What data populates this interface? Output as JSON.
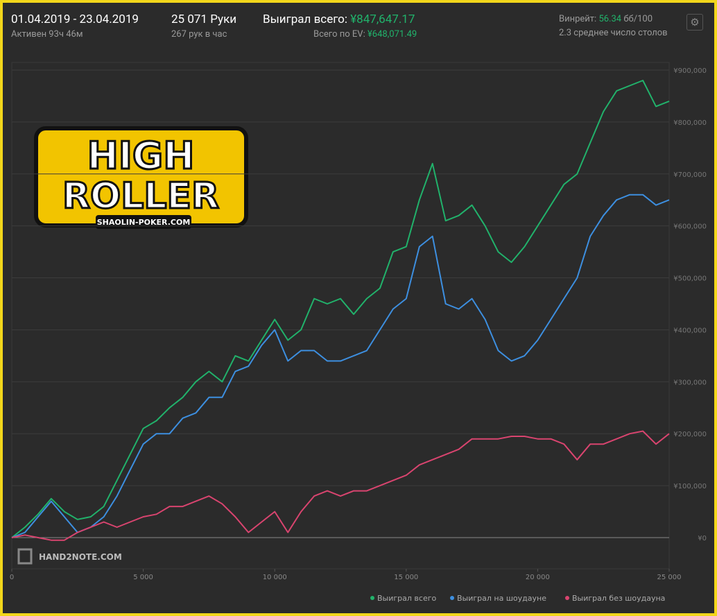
{
  "header": {
    "date_range": "01.04.2019 - 23.04.2019",
    "active": "Активен 93ч 46м",
    "hands": "25 071 Руки",
    "hands_per_hour": "267 рук в час",
    "won_total_label": "Выиграл всего:",
    "won_total_value": "¥847,647.17",
    "ev_label": "Всего по EV:",
    "ev_value": "¥648,071.49",
    "winrate_label": "Винрейт:",
    "winrate_value": "56.34",
    "winrate_unit": "бб/100",
    "avg_tables": "2.3 среднее число столов"
  },
  "logo": {
    "line1": "HIGH",
    "line2": "ROLLER",
    "site": "SHAOLIN-POKER.COM"
  },
  "watermark": "HAND2NOTE.COM",
  "chart_data": {
    "type": "line",
    "x": [
      0,
      500,
      1000,
      1500,
      2000,
      2500,
      3000,
      3500,
      4000,
      4500,
      5000,
      5500,
      6000,
      6500,
      7000,
      7500,
      8000,
      8500,
      9000,
      9500,
      10000,
      10500,
      11000,
      11500,
      12000,
      12500,
      13000,
      13500,
      14000,
      14500,
      15000,
      15500,
      16000,
      16500,
      17000,
      17500,
      18000,
      18500,
      19000,
      19500,
      20000,
      20500,
      21000,
      21500,
      22000,
      22500,
      23000,
      23500,
      24000,
      24500,
      25000
    ],
    "series": [
      {
        "name": "Выиграл всего",
        "color": "#21b26b",
        "values": [
          0,
          20000,
          45000,
          75000,
          50000,
          35000,
          40000,
          60000,
          110000,
          160000,
          210000,
          225000,
          250000,
          270000,
          300000,
          320000,
          300000,
          350000,
          340000,
          380000,
          420000,
          380000,
          400000,
          460000,
          450000,
          460000,
          430000,
          460000,
          480000,
          550000,
          560000,
          650000,
          720000,
          610000,
          620000,
          640000,
          600000,
          550000,
          530000,
          560000,
          600000,
          640000,
          680000,
          700000,
          760000,
          820000,
          860000,
          870000,
          880000,
          830000,
          840000
        ]
      },
      {
        "name": "Выиграл на шоудауне",
        "color": "#3d8fe0",
        "values": [
          0,
          10000,
          40000,
          70000,
          40000,
          10000,
          20000,
          40000,
          80000,
          130000,
          180000,
          200000,
          200000,
          230000,
          240000,
          270000,
          270000,
          320000,
          330000,
          370000,
          400000,
          340000,
          360000,
          360000,
          340000,
          340000,
          350000,
          360000,
          400000,
          440000,
          460000,
          560000,
          580000,
          450000,
          440000,
          460000,
          420000,
          360000,
          340000,
          350000,
          380000,
          420000,
          460000,
          500000,
          580000,
          620000,
          650000,
          660000,
          660000,
          640000,
          650000
        ]
      },
      {
        "name": "Выиграл без шоудауна",
        "color": "#d9446f",
        "values": [
          0,
          5000,
          0,
          -5000,
          -5000,
          10000,
          20000,
          30000,
          20000,
          30000,
          40000,
          45000,
          60000,
          60000,
          70000,
          80000,
          65000,
          40000,
          10000,
          30000,
          50000,
          10000,
          50000,
          80000,
          90000,
          80000,
          90000,
          90000,
          100000,
          110000,
          120000,
          140000,
          150000,
          160000,
          170000,
          190000,
          190000,
          190000,
          195000,
          195000,
          190000,
          190000,
          180000,
          150000,
          180000,
          180000,
          190000,
          200000,
          205000,
          180000,
          200000
        ]
      }
    ],
    "xlim": [
      0,
      25000
    ],
    "xticks": [
      0,
      {
        "value": 5000,
        "label": "5 000"
      },
      {
        "value": 10000,
        "label": "10 000"
      },
      {
        "value": 15000,
        "label": "15 000"
      },
      {
        "value": 20000,
        "label": "20 000"
      },
      {
        "value": 25000,
        "label": "25 000"
      }
    ],
    "ylim": [
      0,
      900000
    ],
    "yticks": [
      {
        "value": 0,
        "label": "¥0"
      },
      {
        "value": 100000,
        "label": "¥100,000"
      },
      {
        "value": 200000,
        "label": "¥200,000"
      },
      {
        "value": 300000,
        "label": "¥300,000"
      },
      {
        "value": 400000,
        "label": "¥400,000"
      },
      {
        "value": 500000,
        "label": "¥500,000"
      },
      {
        "value": 600000,
        "label": "¥600,000"
      },
      {
        "value": 700000,
        "label": "¥700,000"
      },
      {
        "value": 800000,
        "label": "¥800,000"
      },
      {
        "value": 900000,
        "label": "¥900,000"
      }
    ],
    "grid": true
  }
}
